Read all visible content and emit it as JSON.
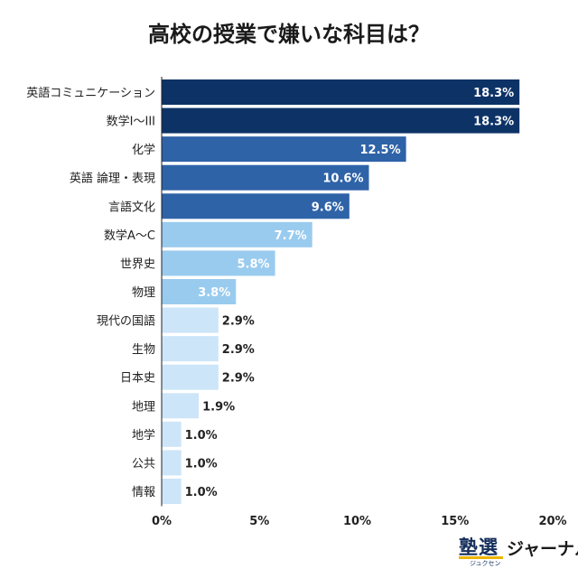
{
  "colors": {
    "dark": "#0d3366",
    "mid": "#2f63a8",
    "light": "#99cbef",
    "pale": "#cde5f8",
    "axis": "#222222",
    "label_light_bg": "#ffffff",
    "label_dark_bg": "#222222"
  },
  "chart_data": {
    "type": "bar",
    "orientation": "horizontal",
    "title": "高校の授業で嫌いな科目は？",
    "xlabel": "",
    "ylabel": "",
    "xlim": [
      0,
      20
    ],
    "x_ticks": [
      "0%",
      "5%",
      "10%",
      "15%",
      "20%"
    ],
    "categories": [
      "英語コミュニケーション",
      "数学I〜III",
      "化学",
      "英語 論理・表現",
      "言語文化",
      "数学A〜C",
      "世界史",
      "物理",
      "現代の国語",
      "生物",
      "日本史",
      "地理",
      "地学",
      "公共",
      "情報"
    ],
    "values": [
      18.3,
      18.3,
      12.5,
      10.6,
      9.6,
      7.7,
      5.8,
      3.8,
      2.9,
      2.9,
      2.9,
      1.9,
      1.0,
      1.0,
      1.0
    ],
    "value_labels": [
      "18.3%",
      "18.3%",
      "12.5%",
      "10.6%",
      "9.6%",
      "7.7%",
      "5.8%",
      "3.8%",
      "2.9%",
      "2.9%",
      "2.9%",
      "1.9%",
      "1.0%",
      "1.0%",
      "1.0%"
    ],
    "bar_color_keys": [
      "dark",
      "dark",
      "mid",
      "mid",
      "mid",
      "light",
      "light",
      "light",
      "pale",
      "pale",
      "pale",
      "pale",
      "pale",
      "pale",
      "pale"
    ],
    "grid": false,
    "legend": "none"
  },
  "logo": {
    "kanji": "塾選",
    "ruby": "ジュクセン",
    "journal": "ジャーナル"
  }
}
